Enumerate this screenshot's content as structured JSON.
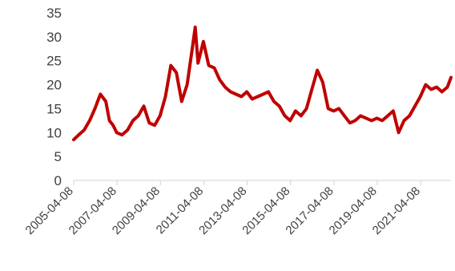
{
  "chart_data": {
    "type": "line",
    "title": "",
    "xlabel": "",
    "ylabel": "",
    "ylim": [
      0,
      35
    ],
    "y_ticks": [
      0,
      5,
      10,
      15,
      20,
      25,
      30,
      35
    ],
    "x_range": [
      "2005-04-08",
      "2022-08-31"
    ],
    "x_tick_labels": [
      "2005-04-08",
      "2007-04-08",
      "2009-04-08",
      "2011-04-08",
      "2013-04-08",
      "2015-04-08",
      "2017-04-08",
      "2019-04-08",
      "2021-04-08"
    ],
    "grid": false,
    "legend": "none",
    "series": [
      {
        "color": "#c00000",
        "x": [
          "2005-04-08",
          "2005-07-01",
          "2005-10-01",
          "2006-01-01",
          "2006-04-01",
          "2006-07-01",
          "2006-10-01",
          "2006-12-01",
          "2007-02-01",
          "2007-04-01",
          "2007-07-01",
          "2007-10-01",
          "2008-01-01",
          "2008-04-01",
          "2008-07-01",
          "2008-10-01",
          "2009-01-01",
          "2009-04-01",
          "2009-07-01",
          "2009-10-01",
          "2010-01-01",
          "2010-04-01",
          "2010-07-01",
          "2010-10-01",
          "2010-11-15",
          "2011-01-01",
          "2011-04-01",
          "2011-07-01",
          "2011-10-01",
          "2012-01-01",
          "2012-04-01",
          "2012-07-01",
          "2012-10-01",
          "2013-01-01",
          "2013-04-01",
          "2013-07-01",
          "2013-10-01",
          "2014-01-01",
          "2014-04-01",
          "2014-07-01",
          "2014-10-01",
          "2015-01-01",
          "2015-04-01",
          "2015-07-01",
          "2015-10-01",
          "2016-01-01",
          "2016-04-01",
          "2016-07-01",
          "2016-10-01",
          "2017-01-01",
          "2017-04-01",
          "2017-07-01",
          "2017-10-01",
          "2018-01-01",
          "2018-04-01",
          "2018-07-01",
          "2018-10-01",
          "2019-01-01",
          "2019-04-01",
          "2019-07-01",
          "2019-10-01",
          "2020-01-01",
          "2020-04-01",
          "2020-07-01",
          "2020-10-01",
          "2021-01-01",
          "2021-04-01",
          "2021-07-01",
          "2021-10-01",
          "2022-01-01",
          "2022-04-01",
          "2022-07-01",
          "2022-08-31"
        ],
        "values": [
          8.5,
          9.5,
          10.5,
          12.5,
          15.0,
          18.0,
          16.5,
          12.5,
          11.5,
          10.0,
          9.5,
          10.5,
          12.5,
          13.5,
          15.5,
          12.0,
          11.5,
          13.5,
          17.5,
          24.0,
          22.5,
          16.5,
          20.0,
          28.0,
          32.0,
          24.5,
          29.0,
          24.0,
          23.5,
          21.0,
          19.5,
          18.5,
          18.0,
          17.5,
          18.5,
          17.0,
          17.5,
          18.0,
          18.5,
          16.5,
          15.5,
          13.5,
          12.5,
          14.5,
          13.5,
          15.0,
          19.0,
          23.0,
          20.5,
          15.0,
          14.5,
          15.0,
          13.5,
          12.0,
          12.5,
          13.5,
          13.0,
          12.5,
          13.0,
          12.5,
          13.5,
          14.5,
          10.0,
          12.5,
          13.5,
          15.5,
          17.5,
          20.0,
          19.0,
          19.5,
          18.5,
          19.5,
          21.5
        ]
      }
    ]
  }
}
